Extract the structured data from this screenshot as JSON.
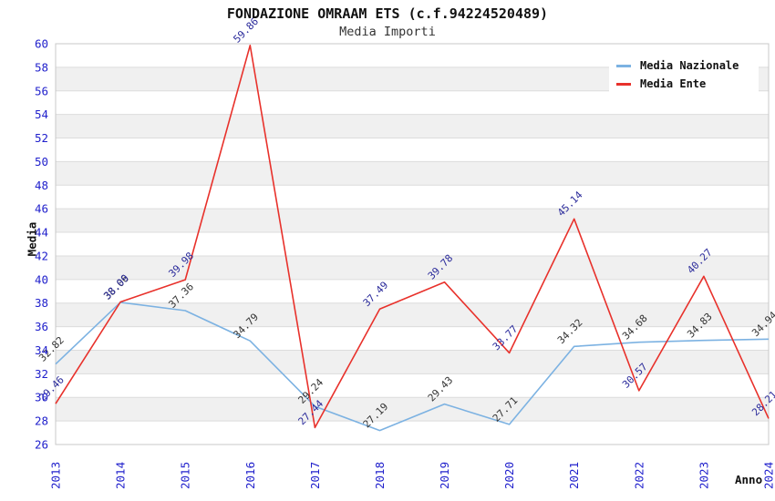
{
  "header": {
    "title": "FONDAZIONE OMRAAM ETS (c.f.94224520489)",
    "subtitle": "Media Importi"
  },
  "axes": {
    "y_label": "Media",
    "x_label": "Anno"
  },
  "legend": {
    "items": [
      {
        "label": "Media Nazionale",
        "color": "#7cb2e2"
      },
      {
        "label": "Media Ente",
        "color": "#e8312b"
      }
    ]
  },
  "chart_data": {
    "type": "line",
    "title": "FONDAZIONE OMRAAM ETS (c.f.94224520489)",
    "subtitle": "Media Importi",
    "xlabel": "Anno",
    "ylabel": "Media",
    "categories": [
      "2013",
      "2014",
      "2015",
      "2016",
      "2017",
      "2018",
      "2019",
      "2020",
      "2021",
      "2022",
      "2023",
      "2024"
    ],
    "series": [
      {
        "name": "Media Nazionale",
        "color": "#7cb2e2",
        "label_color": "#333333",
        "values": [
          32.82,
          38.06,
          37.36,
          34.79,
          29.24,
          27.19,
          29.43,
          27.71,
          34.32,
          34.68,
          34.83,
          34.94
        ]
      },
      {
        "name": "Media Ente",
        "color": "#e8312b",
        "label_color": "#2b2b9b",
        "values": [
          29.46,
          38.09,
          39.98,
          59.86,
          27.44,
          37.49,
          39.78,
          33.77,
          45.14,
          30.57,
          40.27,
          28.21
        ]
      }
    ],
    "ylim": [
      26,
      60
    ],
    "ytick_step": 2,
    "grid": "horizontal gridlines with alternating gray bands",
    "legend_position": "top-right",
    "style": {
      "tick_label_color": "#2121cc",
      "band_fill": "#f0f0f0",
      "gridline_color": "#dcdcdc",
      "plot_border_color": "#c8c8c8",
      "data_label_rotation_deg": -45,
      "x_tick_rotation_deg": -90
    }
  }
}
